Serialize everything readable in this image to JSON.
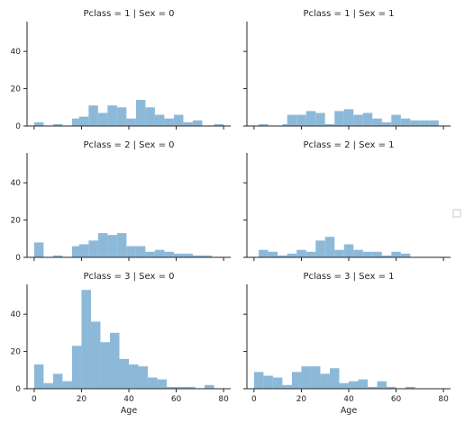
{
  "chart_data": {
    "type": "bar",
    "kind": "faceted-histogram",
    "x_range": [
      -3,
      83
    ],
    "y_range": [
      0,
      56
    ],
    "x_ticks": [
      0,
      20,
      40,
      60,
      80
    ],
    "y_ticks": [
      0,
      20,
      40
    ],
    "x_label": "Age",
    "bin_width": 4,
    "bar_color": "#8db9d9",
    "legend": "right-center (empty box)",
    "grid": false,
    "facets": [
      {
        "title": "Pclass = 1 | Sex = 0",
        "bins": [
          [
            0,
            2
          ],
          [
            8,
            1
          ],
          [
            16,
            4
          ],
          [
            19,
            5
          ],
          [
            23,
            11
          ],
          [
            27,
            7
          ],
          [
            31,
            11
          ],
          [
            35,
            10
          ],
          [
            39,
            4
          ],
          [
            43,
            14
          ],
          [
            47,
            10
          ],
          [
            51,
            6
          ],
          [
            55,
            4
          ],
          [
            59,
            6
          ],
          [
            63,
            2
          ],
          [
            67,
            3
          ],
          [
            76,
            1
          ]
        ]
      },
      {
        "title": "Pclass = 1 | Sex = 1",
        "bins": [
          [
            2,
            1
          ],
          [
            12,
            1
          ],
          [
            14,
            6
          ],
          [
            18,
            6
          ],
          [
            22,
            8
          ],
          [
            26,
            7
          ],
          [
            30,
            1
          ],
          [
            34,
            8
          ],
          [
            38,
            9
          ],
          [
            42,
            6
          ],
          [
            46,
            7
          ],
          [
            50,
            4
          ],
          [
            54,
            2
          ],
          [
            58,
            6
          ],
          [
            62,
            4
          ],
          [
            66,
            3
          ],
          [
            70,
            3
          ],
          [
            74,
            3
          ]
        ]
      },
      {
        "title": "Pclass = 2 | Sex = 0",
        "bins": [
          [
            0,
            8
          ],
          [
            8,
            1
          ],
          [
            16,
            6
          ],
          [
            19,
            7
          ],
          [
            23,
            9
          ],
          [
            27,
            13
          ],
          [
            31,
            12
          ],
          [
            35,
            13
          ],
          [
            39,
            6
          ],
          [
            43,
            6
          ],
          [
            47,
            3
          ],
          [
            51,
            4
          ],
          [
            55,
            3
          ],
          [
            59,
            2
          ],
          [
            63,
            2
          ],
          [
            67,
            1
          ],
          [
            71,
            1
          ]
        ]
      },
      {
        "title": "Pclass = 2 | Sex = 1",
        "bins": [
          [
            2,
            4
          ],
          [
            6,
            3
          ],
          [
            10,
            1
          ],
          [
            14,
            2
          ],
          [
            18,
            4
          ],
          [
            22,
            3
          ],
          [
            26,
            9
          ],
          [
            30,
            11
          ],
          [
            34,
            4
          ],
          [
            38,
            7
          ],
          [
            42,
            4
          ],
          [
            46,
            3
          ],
          [
            50,
            3
          ],
          [
            54,
            1
          ],
          [
            58,
            3
          ],
          [
            62,
            2
          ]
        ]
      },
      {
        "title": "Pclass = 3 | Sex = 0",
        "bins": [
          [
            0,
            13
          ],
          [
            4,
            3
          ],
          [
            8,
            8
          ],
          [
            12,
            4
          ],
          [
            16,
            23
          ],
          [
            20,
            53
          ],
          [
            24,
            36
          ],
          [
            28,
            25
          ],
          [
            32,
            30
          ],
          [
            36,
            16
          ],
          [
            40,
            13
          ],
          [
            44,
            12
          ],
          [
            48,
            6
          ],
          [
            52,
            5
          ],
          [
            56,
            1
          ],
          [
            60,
            1
          ],
          [
            64,
            1
          ],
          [
            72,
            2
          ]
        ]
      },
      {
        "title": "Pclass = 3 | Sex = 1",
        "bins": [
          [
            0,
            9
          ],
          [
            4,
            7
          ],
          [
            8,
            6
          ],
          [
            12,
            2
          ],
          [
            16,
            9
          ],
          [
            20,
            12
          ],
          [
            24,
            12
          ],
          [
            28,
            8
          ],
          [
            32,
            11
          ],
          [
            36,
            3
          ],
          [
            40,
            4
          ],
          [
            44,
            5
          ],
          [
            48,
            1
          ],
          [
            52,
            4
          ],
          [
            56,
            1
          ],
          [
            64,
            1
          ]
        ]
      }
    ]
  }
}
